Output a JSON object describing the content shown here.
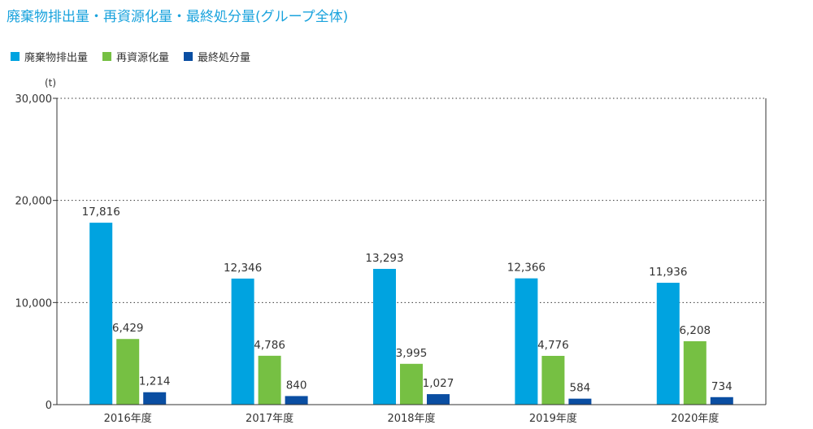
{
  "title": "廃棄物排出量・再資源化量・最終処分量(グループ全体)",
  "colors": {
    "series0": "#00a3e0",
    "series1": "#76c043",
    "series2": "#0a4ea2"
  },
  "chart_data": {
    "type": "bar",
    "title": "廃棄物排出量・再資源化量・最終処分量(グループ全体)",
    "ylabel": "(t)",
    "xlabel": "",
    "ylim": [
      0,
      30000
    ],
    "yticks": [
      0,
      10000,
      20000,
      30000
    ],
    "ytick_labels": [
      "0",
      "10,000",
      "20,000",
      "30,000"
    ],
    "grid": "horizontal dotted",
    "legend": "top-left",
    "categories": [
      "2016年度",
      "2017年度",
      "2018年度",
      "2019年度",
      "2020年度"
    ],
    "series": [
      {
        "name": "廃棄物排出量",
        "values": [
          17816,
          12346,
          13293,
          12366,
          11936
        ],
        "labels": [
          "17,816",
          "12,346",
          "13,293",
          "12,366",
          "11,936"
        ]
      },
      {
        "name": "再資源化量",
        "values": [
          6429,
          4786,
          3995,
          4776,
          6208
        ],
        "labels": [
          "6,429",
          "4,786",
          "3,995",
          "4,776",
          "6,208"
        ]
      },
      {
        "name": "最終処分量",
        "values": [
          1214,
          840,
          1027,
          584,
          734
        ],
        "labels": [
          "1,214",
          "840",
          "1,027",
          "584",
          "734"
        ]
      }
    ]
  }
}
